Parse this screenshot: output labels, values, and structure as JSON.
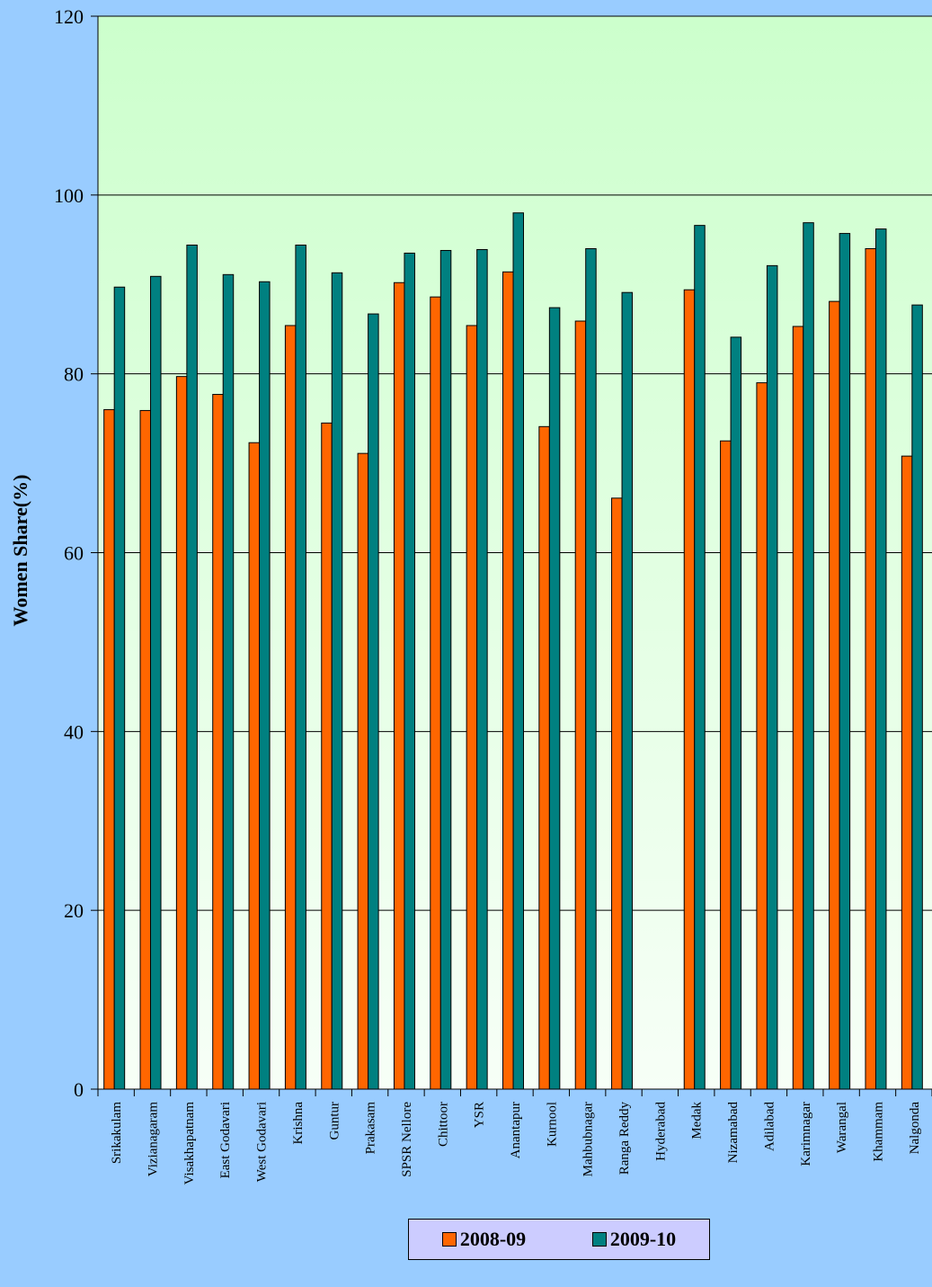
{
  "chart_data": {
    "type": "bar",
    "title": "",
    "xlabel": "",
    "ylabel": "Women Share(%)",
    "ylim": [
      0,
      120
    ],
    "yticks": [
      0,
      20,
      40,
      60,
      80,
      100,
      120
    ],
    "grid": true,
    "legend_position": "bottom",
    "categories": [
      "Srikakulam",
      "Vizianagaram",
      "Visakhapatnam",
      "East Godavari",
      "West Godavari",
      "Krishna",
      "Guntur",
      "Prakasam",
      "SPSR Nellore",
      "Chittoor",
      "YSR",
      "Anantapur",
      "Kurnool",
      "Mahbubnagar",
      "Ranga Reddy",
      "Hyderabad",
      "Medak",
      "Nizamabad",
      "Adilabad",
      "Karimnagar",
      "Warangal",
      "Khammam",
      "Nalgonda"
    ],
    "series": [
      {
        "name": "2008-09",
        "color": "#ff6600",
        "values": [
          76.0,
          75.9,
          79.7,
          77.7,
          72.3,
          85.4,
          74.5,
          71.1,
          90.2,
          88.6,
          85.4,
          91.4,
          74.1,
          85.9,
          66.1,
          null,
          89.4,
          72.5,
          79.0,
          85.3,
          88.1,
          94.0,
          70.8
        ]
      },
      {
        "name": "2009-10",
        "color": "#008080",
        "values": [
          89.7,
          90.9,
          94.4,
          91.1,
          90.3,
          94.4,
          91.3,
          86.7,
          93.5,
          93.8,
          93.9,
          98.0,
          87.4,
          94.0,
          89.1,
          null,
          96.6,
          84.1,
          92.1,
          96.9,
          95.7,
          96.2,
          87.7
        ]
      }
    ],
    "colors": {
      "background": "#99ccff",
      "plot_top": "#ccffcc",
      "plot_bottom": "#f7fff7",
      "legend_bg": "#ccccff"
    }
  }
}
